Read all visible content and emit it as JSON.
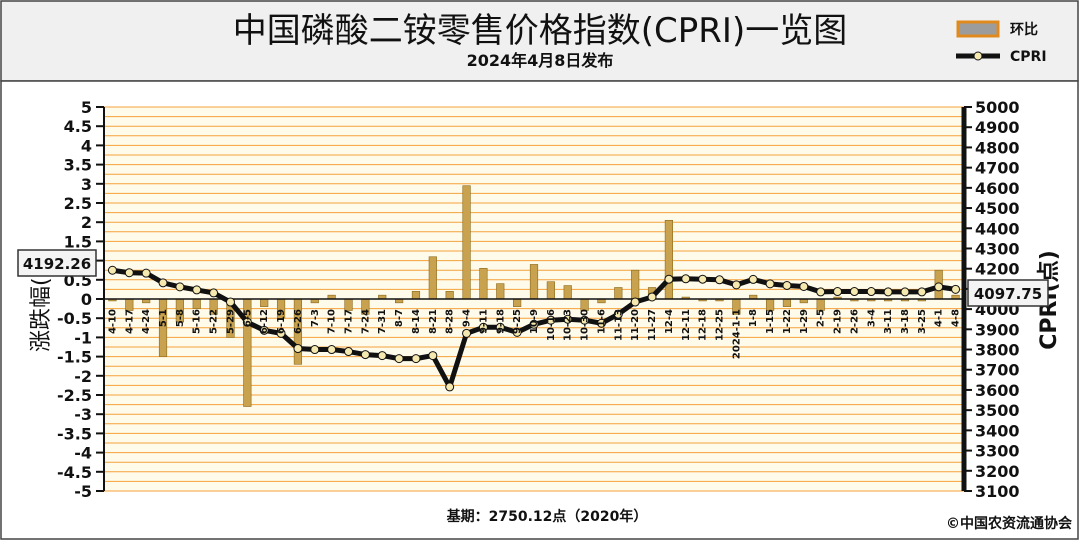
{
  "title": "中国磷酸二铵零售价格指数(CPRI)一览图",
  "subtitle": "2024年4月8日发布",
  "legend": {
    "bar_label": "环比",
    "line_label": "CPRI"
  },
  "footer": {
    "base": "基期：2750.12点（2020年）",
    "copyright": "©中国农资流通协会"
  },
  "callouts": {
    "start": "4192.26",
    "end": "4097.75"
  },
  "colors": {
    "grid": "#F4A23A",
    "bar": "#C8A24E",
    "bar_edge": "#8A6A1E",
    "line": "#111111",
    "marker": "#F5E9B0"
  },
  "chart_data": {
    "type": "bar+line",
    "title": "中国磷酸二铵零售价格指数(CPRI)一览图",
    "ylabel_left": "涨跌幅(%)",
    "ylabel_right": "CPRI(点)",
    "ylim_left": [
      -5,
      5
    ],
    "ylim_right": [
      3100,
      5000
    ],
    "yticks_left": [
      "5",
      "4.5",
      "4",
      "3.5",
      "3",
      "2.5",
      "2",
      "1.5",
      "1",
      "0.5",
      "0",
      "-0.5",
      "-1",
      "-1.5",
      "-2",
      "-2.5",
      "-3",
      "-3.5",
      "-4",
      "-4.5",
      "-5"
    ],
    "yticks_right": [
      "5000",
      "4900",
      "4800",
      "4700",
      "4600",
      "4500",
      "4400",
      "4300",
      "4200",
      "4100",
      "4000",
      "3900",
      "3800",
      "3700",
      "3600",
      "3500",
      "3400",
      "3300",
      "3200",
      "3100"
    ],
    "categories": [
      "4-10",
      "4-17",
      "4-24",
      "5-1",
      "5-8",
      "5-16",
      "5-22",
      "5-29",
      "6-5",
      "6-12",
      "6-19",
      "6-26",
      "7-3",
      "7-10",
      "7-17",
      "7-24",
      "7-31",
      "8-7",
      "8-14",
      "8-21",
      "8-28",
      "9-4",
      "9-11",
      "9-18",
      "9-25",
      "10-9",
      "10-16",
      "10-23",
      "10-30",
      "11-6",
      "11-13",
      "11-20",
      "11-27",
      "12-4",
      "12-11",
      "12-18",
      "12-25",
      "2024-1-1",
      "1-8",
      "1-15",
      "1-22",
      "1-29",
      "2-5",
      "2-19",
      "2-26",
      "3-4",
      "3-11",
      "3-18",
      "3-25",
      "4-1",
      "4-8"
    ],
    "series": [
      {
        "name": "环比",
        "kind": "bar",
        "values": [
          -0.05,
          -0.3,
          -0.1,
          -1.5,
          -0.6,
          -0.25,
          -0.4,
          -1.0,
          -2.8,
          -0.2,
          -0.5,
          -1.7,
          -0.1,
          0.1,
          -0.3,
          -0.4,
          0.1,
          -0.1,
          0.2,
          1.1,
          0.2,
          2.95,
          0.8,
          0.4,
          -0.2,
          0.9,
          0.45,
          0.35,
          -0.3,
          -0.1,
          0.3,
          0.75,
          0.3,
          2.05,
          0.05,
          -0.05,
          -0.05,
          -0.4,
          0.1,
          -0.3,
          -0.2,
          -0.1,
          -0.3,
          0.05,
          -0.05,
          -0.05,
          -0.05,
          -0.05,
          -0.05,
          0.75,
          0.1
        ]
      },
      {
        "name": "CPRI",
        "kind": "line",
        "values": [
          4192.26,
          4180,
          4178,
          4130,
          4110,
          4095,
          4080,
          4035,
          3935,
          3895,
          3880,
          3805,
          3800,
          3800,
          3790,
          3775,
          3770,
          3755,
          3755,
          3770,
          3615,
          3880,
          3910,
          3910,
          3885,
          3925,
          3945,
          3950,
          3945,
          3930,
          3975,
          4035,
          4060,
          4148,
          4150,
          4148,
          4145,
          4120,
          4147,
          4125,
          4117,
          4112,
          4085,
          4087,
          4087,
          4087,
          4085,
          4085,
          4085,
          4110,
          4097.75
        ]
      }
    ]
  }
}
